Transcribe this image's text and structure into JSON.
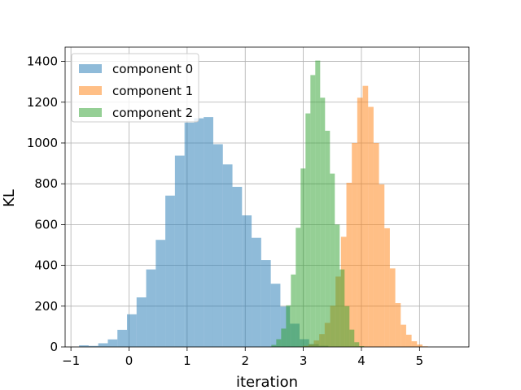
{
  "chart_data": {
    "type": "bar",
    "title": "",
    "xlabel": "iteration",
    "ylabel": "KL",
    "xlim": [
      -1.1,
      5.85
    ],
    "ylim": [
      0,
      1470
    ],
    "xticks": [
      -1,
      0,
      1,
      2,
      3,
      4,
      5
    ],
    "yticks": [
      0,
      200,
      400,
      600,
      800,
      1000,
      1200,
      1400
    ],
    "grid": true,
    "legend": "upper-left",
    "bar_alpha": 0.5,
    "series": [
      {
        "name": "component 0",
        "color": "#1f77b4",
        "bin_start": -0.86,
        "bin_width": 0.165,
        "values": [
          8,
          5,
          18,
          37,
          84,
          160,
          243,
          380,
          525,
          742,
          938,
          1100,
          1121,
          1127,
          994,
          895,
          785,
          645,
          535,
          426,
          310,
          198,
          114,
          38,
          14,
          6
        ]
      },
      {
        "name": "component 1",
        "color": "#ff7f0e",
        "bin_start": 2.9,
        "bin_width": 0.0935,
        "values": [
          2,
          5,
          13,
          32,
          63,
          118,
          202,
          345,
          540,
          805,
          1000,
          1222,
          1280,
          1177,
          1000,
          797,
          582,
          385,
          215,
          109,
          60,
          28,
          12,
          3
        ]
      },
      {
        "name": "component 2",
        "color": "#2ca02c",
        "bin_start": 2.45,
        "bin_width": 0.084,
        "values": [
          10,
          38,
          90,
          204,
          355,
          584,
          875,
          1145,
          1333,
          1404,
          1222,
          1060,
          850,
          600,
          380,
          200,
          85,
          23,
          4
        ]
      }
    ]
  }
}
